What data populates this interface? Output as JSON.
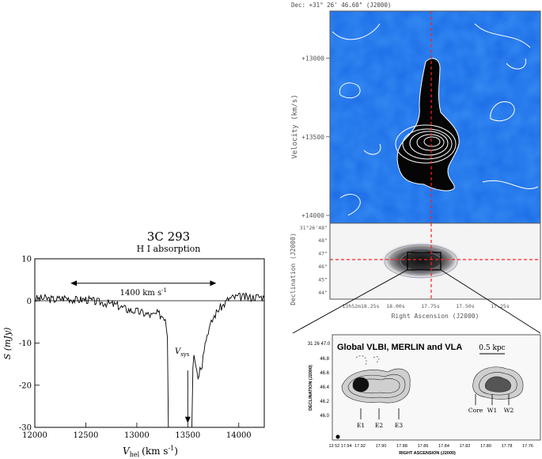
{
  "chart_data": [
    {
      "type": "line",
      "title": "3C 293",
      "subtitle": "H I absorption",
      "xlabel_main": "V",
      "xlabel_sub": "hel",
      "xlabel_units": "(km s",
      "xlabel_exp": "-1",
      "xlabel_close": ")",
      "ylabel": "S (mJy)",
      "xlim": [
        12000,
        14250
      ],
      "ylim": [
        -30,
        10
      ],
      "xticks": [
        12000,
        12500,
        13000,
        13500,
        14000
      ],
      "yticks": [
        10,
        0,
        -10,
        -20,
        -30
      ],
      "grid": false,
      "annotations": {
        "width_label": "1400 km s",
        "width_exp": "-1",
        "width_range": [
          12350,
          13780
        ],
        "width_y": 4.2,
        "vsys_main": "V",
        "vsys_sub": "sys",
        "vsys_x": 13500,
        "vsys_text_y": -12.5,
        "vsys_arrow": [
          -16.5,
          -29
        ]
      },
      "series": [
        {
          "x": [
            12000,
            12100,
            12200,
            12300,
            12400,
            12500,
            12600,
            12700,
            12800,
            12900,
            13000,
            13080,
            13150,
            13200,
            13250,
            13280,
            13300,
            13310,
            13330,
            13400,
            13450,
            13480,
            13500,
            13520,
            13540,
            13550,
            13560,
            13580,
            13600,
            13620,
            13640,
            13650,
            13670,
            13700,
            13720,
            13750,
            13800,
            13850,
            13900,
            13950,
            14000,
            14100,
            14200,
            14250
          ],
          "y": [
            0.5,
            0.6,
            0.3,
            0.8,
            0.2,
            0.4,
            -0.2,
            -0.5,
            -1.0,
            -2.0,
            -2.5,
            -3.0,
            -3.5,
            -3.0,
            -3.5,
            -4.0,
            -8.0,
            -30,
            -30,
            -30,
            -30,
            -30,
            -30,
            -30,
            -30,
            -15.0,
            -12.0,
            -15.0,
            -18.0,
            -16.0,
            -15.0,
            -12.0,
            -10.0,
            -7.0,
            -6.0,
            -4.0,
            -2.0,
            -1.0,
            0.5,
            0.8,
            1.0,
            0.8,
            1.0,
            0.8
          ]
        }
      ]
    },
    {
      "type": "heatmap",
      "title": "Dec: +31° 26' 46.60\" (J2000)",
      "ylabel": "Velocity (km/s)",
      "yticks": [
        "+13000",
        "+13500",
        "+14000"
      ],
      "ylim": [
        12700,
        14050
      ]
    },
    {
      "type": "heatmap",
      "ylabel": "Declination (J2000)",
      "xlabel": "Right Ascension (J2000)",
      "ytick_top": "31°26'48\"",
      "yticks": [
        "48\"",
        "47\"",
        "46\"",
        "45\"",
        "44\""
      ],
      "xticks": [
        "13h52m18.25s",
        "18.00s",
        "17.75s",
        "17.50s",
        "17.25s"
      ]
    },
    {
      "type": "heatmap",
      "title": "Global VLBI, MERLIN and VLA",
      "scale_label": "0.5 kpc",
      "ylabel": "DECLINATION (J2000)",
      "xlabel": "RIGHT ASCENSION (J2000)",
      "ytick_top": "31 26 47.0",
      "yticks": [
        "46.8",
        "46.6",
        "46.4",
        "46.2",
        "46.0"
      ],
      "xtick_first": "13 52 17.94",
      "xticks": [
        "17.92",
        "17.90",
        "17.88",
        "17.86",
        "17.84",
        "17.82",
        "17.80",
        "17.78",
        "17.76"
      ],
      "components": [
        "E1",
        "E2",
        "E3",
        "Core",
        "W1",
        "W2"
      ]
    }
  ]
}
